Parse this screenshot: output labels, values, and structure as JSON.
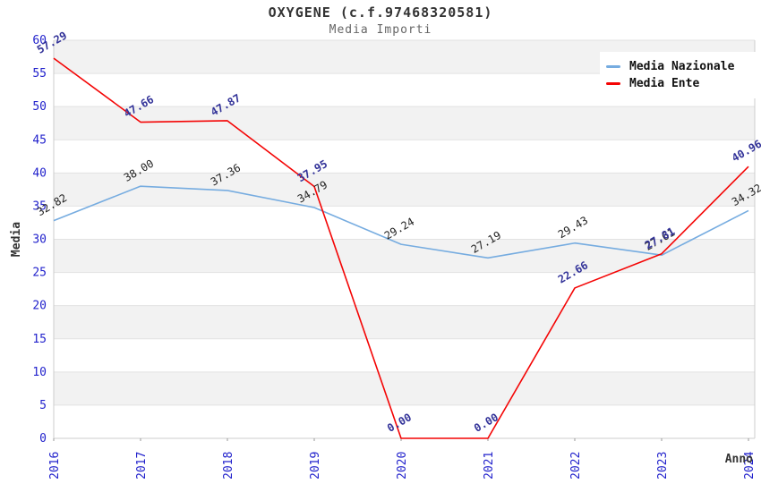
{
  "chart_data": {
    "type": "line",
    "title": "OXYGENE (c.f.97468320581)",
    "subtitle": "Media Importi",
    "xlabel": "Anno",
    "ylabel": "Media",
    "categories": [
      "2016",
      "2017",
      "2018",
      "2019",
      "2020",
      "2021",
      "2022",
      "2023",
      "2024"
    ],
    "ylim": [
      0,
      60
    ],
    "y_tick_step": 5,
    "grid": true,
    "legend_position": "top-right",
    "series": [
      {
        "name": "Media Nazionale",
        "color": "#76ACE0",
        "label_color": "#222222",
        "label_bold": false,
        "values": [
          32.82,
          38.0,
          37.36,
          34.79,
          29.24,
          27.19,
          29.43,
          27.61,
          34.32
        ],
        "labels": [
          "32.82",
          "38.00",
          "37.36",
          "34.79",
          "29.24",
          "27.19",
          "29.43",
          "27.61",
          "34.32"
        ]
      },
      {
        "name": "Media Ente",
        "color": "#F40404",
        "label_color": "#333399",
        "label_bold": true,
        "values": [
          57.29,
          47.66,
          47.87,
          37.95,
          0.0,
          0.0,
          22.66,
          27.81,
          40.96
        ],
        "labels": [
          "57.29",
          "47.66",
          "47.87",
          "37.95",
          "0.00",
          "0.00",
          "22.66",
          "27.81",
          "40.96"
        ]
      }
    ],
    "colors": {
      "band": "#FFFFFF",
      "band_alt": "#F2F2F2",
      "grid": "#E2E2E2",
      "axis": "#CCCCCC",
      "tick_label": "#2222CC",
      "axis_title": "#333333"
    }
  }
}
